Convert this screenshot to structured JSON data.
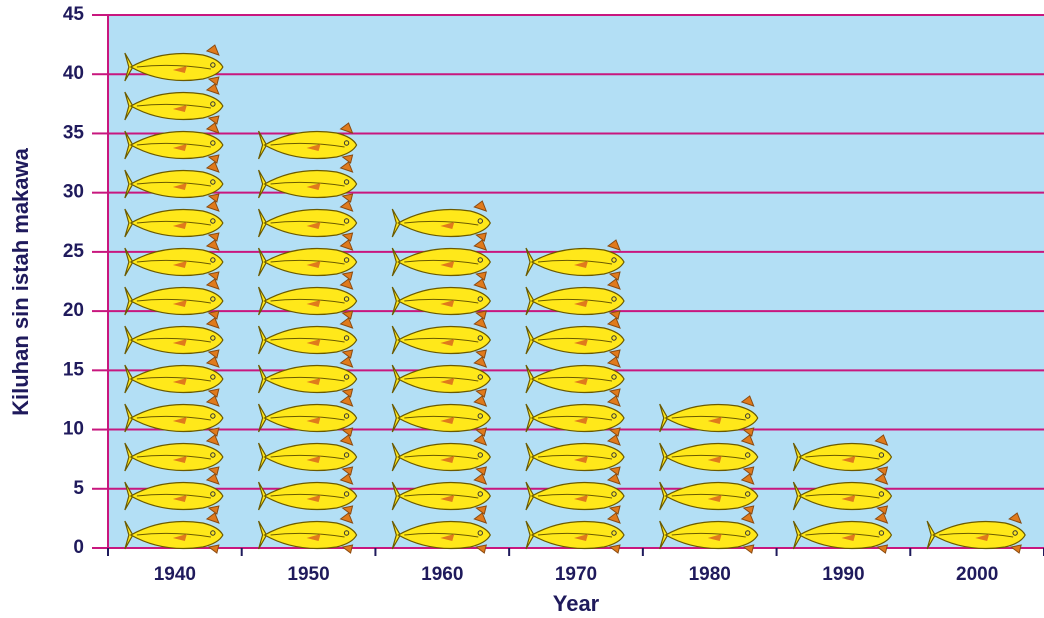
{
  "chart_data": {
    "type": "pictograph",
    "x_label": "Year",
    "y_label": "Kiluhan sin istah makawa",
    "categories": [
      "1940",
      "1950",
      "1960",
      "1970",
      "1980",
      "1990",
      "2000"
    ],
    "values": [
      42.3,
      35.7,
      29.4,
      25.8,
      12.8,
      9.5,
      3
    ],
    "color": "#ffe81a",
    "ylim": [
      0,
      45
    ],
    "yticks": [
      0,
      5,
      10,
      15,
      20,
      25,
      30,
      35,
      40,
      45
    ],
    "grid": true
  }
}
